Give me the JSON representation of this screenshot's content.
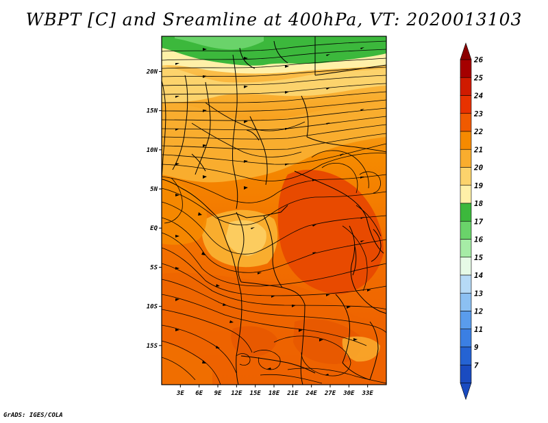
{
  "title": "WBPT [C] and Sreamline at 400hPa, VT: 2020013103",
  "credit": "GrADS: IGES/COLA",
  "map": {
    "lon_range": [
      0,
      36
    ],
    "lat_range": [
      -20,
      24.5
    ],
    "lon_ticks": [
      "3E",
      "6E",
      "9E",
      "12E",
      "15E",
      "18E",
      "21E",
      "24E",
      "27E",
      "30E",
      "33E"
    ],
    "lat_ticks": [
      "20N",
      "15N",
      "10N",
      "5N",
      "EQ",
      "5S",
      "10S",
      "15S"
    ]
  },
  "colorbar": {
    "labels": [
      "26",
      "25",
      "24",
      "23",
      "22",
      "21",
      "20",
      "19",
      "18",
      "17",
      "16",
      "15",
      "14",
      "13",
      "12",
      "11",
      "9",
      "7"
    ],
    "colors": [
      "#a50000",
      "#d01b00",
      "#e83200",
      "#f05a00",
      "#f58a00",
      "#f9ad2e",
      "#fcd36c",
      "#fff0a8",
      "#3cb83c",
      "#6ad36a",
      "#a6eca6",
      "#e6fae6",
      "#b6daf6",
      "#8cc0f2",
      "#5a9cec",
      "#3b7fe3",
      "#2563d3",
      "#1a4bc0"
    ],
    "top_arrow_color": "#8b0000",
    "bottom_arrow_color": "#1a4bc0"
  },
  "accent": {
    "cool_band": "#3cb83c",
    "warm_core": "#e84a00"
  }
}
